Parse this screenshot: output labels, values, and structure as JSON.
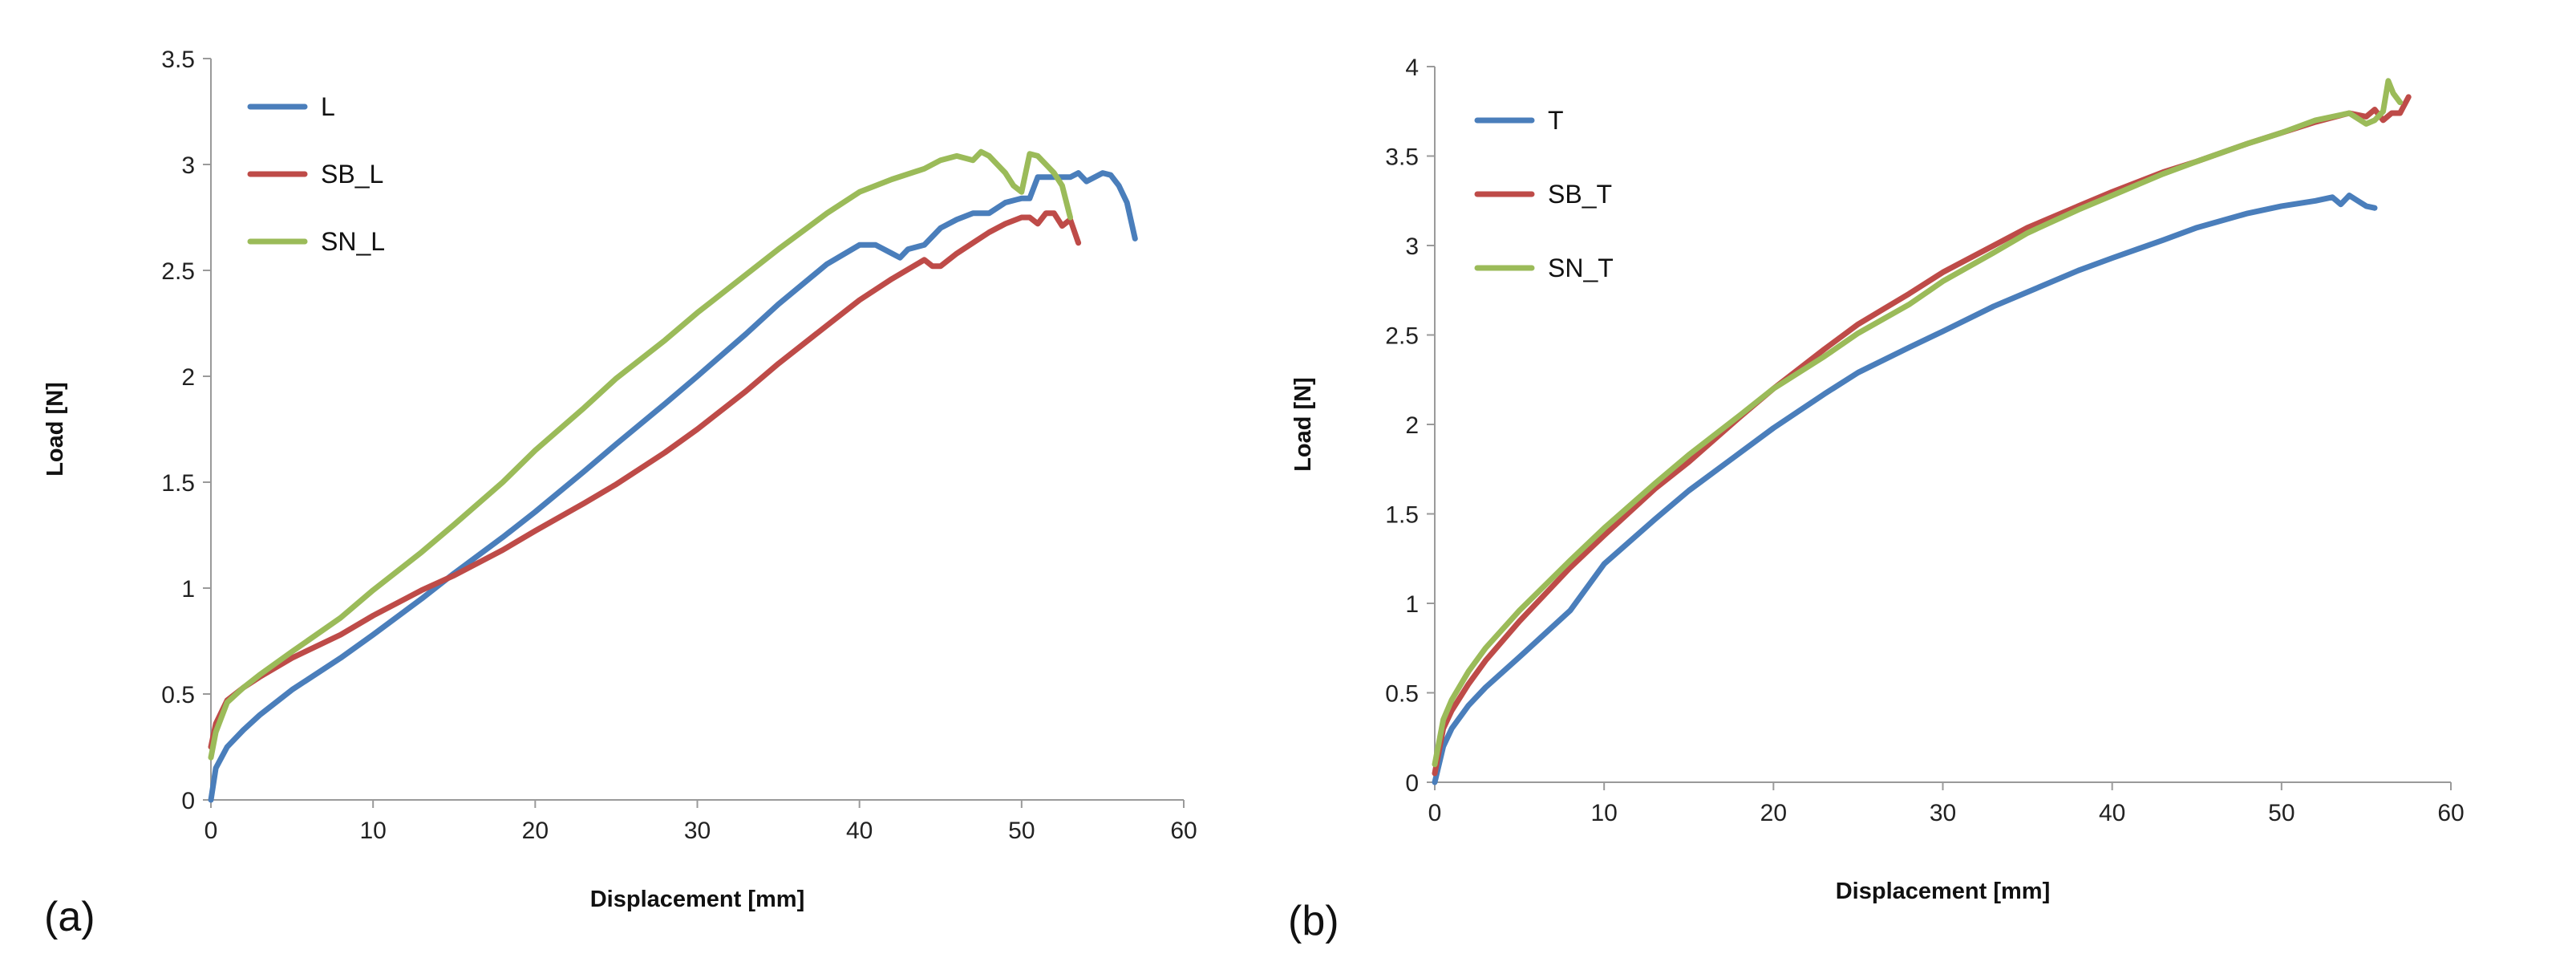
{
  "chart_data": [
    {
      "type": "line",
      "panel_tag": "(a)",
      "title": "",
      "xlabel": "Displacement  [mm]",
      "ylabel": "Load [N]",
      "xlim": [
        0,
        60
      ],
      "ylim": [
        0,
        3.5
      ],
      "x_ticks": [
        "0",
        "10",
        "20",
        "30",
        "40",
        "50",
        "60"
      ],
      "y_ticks": [
        "0",
        "0.5",
        "1",
        "1.5",
        "2",
        "2.5",
        "3",
        "3.5"
      ],
      "x_tick_values": [
        0,
        10,
        20,
        30,
        40,
        50,
        60
      ],
      "y_tick_values": [
        0,
        0.5,
        1,
        1.5,
        2,
        2.5,
        3,
        3.5
      ],
      "grid": false,
      "legend_position": "top-left",
      "series": [
        {
          "name": "L",
          "color": "#4a7ebb",
          "x": [
            0,
            0.3,
            1,
            2,
            3,
            5,
            8,
            10,
            13,
            15,
            18,
            20,
            23,
            25,
            28,
            30,
            33,
            35,
            38,
            40,
            41,
            42,
            42.5,
            43,
            44,
            45,
            46,
            47,
            48,
            49,
            50,
            50.5,
            51,
            52,
            53,
            53.5,
            54,
            55,
            55.5,
            56,
            56.5,
            57
          ],
          "y": [
            0,
            0.15,
            0.25,
            0.33,
            0.4,
            0.52,
            0.67,
            0.78,
            0.95,
            1.07,
            1.24,
            1.36,
            1.55,
            1.68,
            1.87,
            2.0,
            2.2,
            2.34,
            2.53,
            2.62,
            2.62,
            2.58,
            2.56,
            2.6,
            2.62,
            2.7,
            2.74,
            2.77,
            2.77,
            2.82,
            2.84,
            2.84,
            2.94,
            2.94,
            2.94,
            2.96,
            2.92,
            2.96,
            2.95,
            2.9,
            2.82,
            2.65
          ]
        },
        {
          "name": "SB_L",
          "color": "#be4b48",
          "x": [
            0,
            0.3,
            1,
            2,
            3,
            5,
            8,
            10,
            13,
            15,
            18,
            20,
            23,
            25,
            28,
            30,
            33,
            35,
            38,
            40,
            42,
            44,
            44.5,
            45,
            46,
            47,
            48,
            49,
            50,
            50.5,
            51,
            51.5,
            52,
            52.5,
            53,
            53.5
          ],
          "y": [
            0.25,
            0.36,
            0.47,
            0.53,
            0.58,
            0.67,
            0.78,
            0.87,
            0.99,
            1.06,
            1.18,
            1.27,
            1.4,
            1.49,
            1.64,
            1.75,
            1.93,
            2.06,
            2.24,
            2.36,
            2.46,
            2.55,
            2.52,
            2.52,
            2.58,
            2.63,
            2.68,
            2.72,
            2.75,
            2.75,
            2.72,
            2.77,
            2.77,
            2.71,
            2.74,
            2.63
          ]
        },
        {
          "name": "SN_L",
          "color": "#9bbb59",
          "x": [
            0,
            0.3,
            1,
            2,
            3,
            5,
            8,
            10,
            13,
            15,
            18,
            20,
            23,
            25,
            28,
            30,
            33,
            35,
            38,
            40,
            42,
            44,
            45,
            46,
            47,
            47.5,
            48,
            48.5,
            49,
            49.5,
            50,
            50.5,
            51,
            51.5,
            52,
            52.5,
            53
          ],
          "y": [
            0.2,
            0.32,
            0.46,
            0.53,
            0.59,
            0.7,
            0.86,
            0.99,
            1.17,
            1.3,
            1.5,
            1.65,
            1.85,
            1.99,
            2.17,
            2.3,
            2.48,
            2.6,
            2.77,
            2.87,
            2.93,
            2.98,
            3.02,
            3.04,
            3.02,
            3.06,
            3.04,
            3.0,
            2.96,
            2.9,
            2.87,
            3.05,
            3.04,
            3.0,
            2.96,
            2.9,
            2.75
          ]
        }
      ]
    },
    {
      "type": "line",
      "panel_tag": "(b)",
      "title": "",
      "xlabel": "Displacement  [mm]",
      "ylabel": "Load [N]",
      "xlim": [
        0,
        60
      ],
      "ylim": [
        0,
        4
      ],
      "x_ticks": [
        "0",
        "10",
        "20",
        "30",
        "40",
        "50",
        "60"
      ],
      "y_ticks": [
        "0",
        "0.5",
        "1",
        "1.5",
        "2",
        "2.5",
        "3",
        "3.5",
        "4"
      ],
      "x_tick_values": [
        0,
        10,
        20,
        30,
        40,
        50,
        60
      ],
      "y_tick_values": [
        0,
        0.5,
        1,
        1.5,
        2,
        2.5,
        3,
        3.5,
        4
      ],
      "grid": false,
      "legend_position": "top-left",
      "series": [
        {
          "name": "T",
          "color": "#4a7ebb",
          "x": [
            0,
            0.5,
            1,
            2,
            3,
            5,
            8,
            10,
            13,
            15,
            18,
            20,
            23,
            25,
            28,
            30,
            33,
            35,
            38,
            40,
            43,
            45,
            48,
            50,
            52,
            53,
            53.5,
            54,
            54.5,
            55,
            55.5
          ],
          "y": [
            0,
            0.2,
            0.3,
            0.43,
            0.53,
            0.7,
            0.96,
            1.22,
            1.47,
            1.63,
            1.84,
            1.98,
            2.17,
            2.29,
            2.43,
            2.52,
            2.66,
            2.74,
            2.86,
            2.93,
            3.03,
            3.1,
            3.18,
            3.22,
            3.25,
            3.27,
            3.23,
            3.28,
            3.25,
            3.22,
            3.21
          ]
        },
        {
          "name": "SB_T",
          "color": "#be4b48",
          "x": [
            0,
            0.5,
            1,
            2,
            3,
            5,
            8,
            10,
            13,
            15,
            18,
            20,
            23,
            25,
            28,
            30,
            33,
            35,
            38,
            40,
            43,
            45,
            48,
            50,
            52,
            54,
            55,
            55.5,
            56,
            56.5,
            57,
            57.5
          ],
          "y": [
            0.05,
            0.3,
            0.4,
            0.55,
            0.68,
            0.9,
            1.2,
            1.38,
            1.64,
            1.79,
            2.04,
            2.2,
            2.42,
            2.56,
            2.73,
            2.85,
            3.0,
            3.1,
            3.22,
            3.3,
            3.41,
            3.47,
            3.57,
            3.63,
            3.69,
            3.74,
            3.72,
            3.76,
            3.7,
            3.74,
            3.74,
            3.83
          ]
        },
        {
          "name": "SN_T",
          "color": "#9bbb59",
          "x": [
            0,
            0.5,
            1,
            2,
            3,
            5,
            8,
            10,
            13,
            15,
            18,
            20,
            23,
            25,
            28,
            30,
            33,
            35,
            38,
            40,
            43,
            45,
            48,
            50,
            52,
            54,
            55,
            55.5,
            56,
            56.3,
            56.6,
            57
          ],
          "y": [
            0.1,
            0.35,
            0.46,
            0.62,
            0.75,
            0.96,
            1.24,
            1.42,
            1.67,
            1.83,
            2.05,
            2.2,
            2.38,
            2.51,
            2.67,
            2.8,
            2.96,
            3.07,
            3.2,
            3.28,
            3.4,
            3.47,
            3.57,
            3.63,
            3.7,
            3.74,
            3.68,
            3.7,
            3.75,
            3.92,
            3.85,
            3.8
          ]
        }
      ]
    }
  ]
}
